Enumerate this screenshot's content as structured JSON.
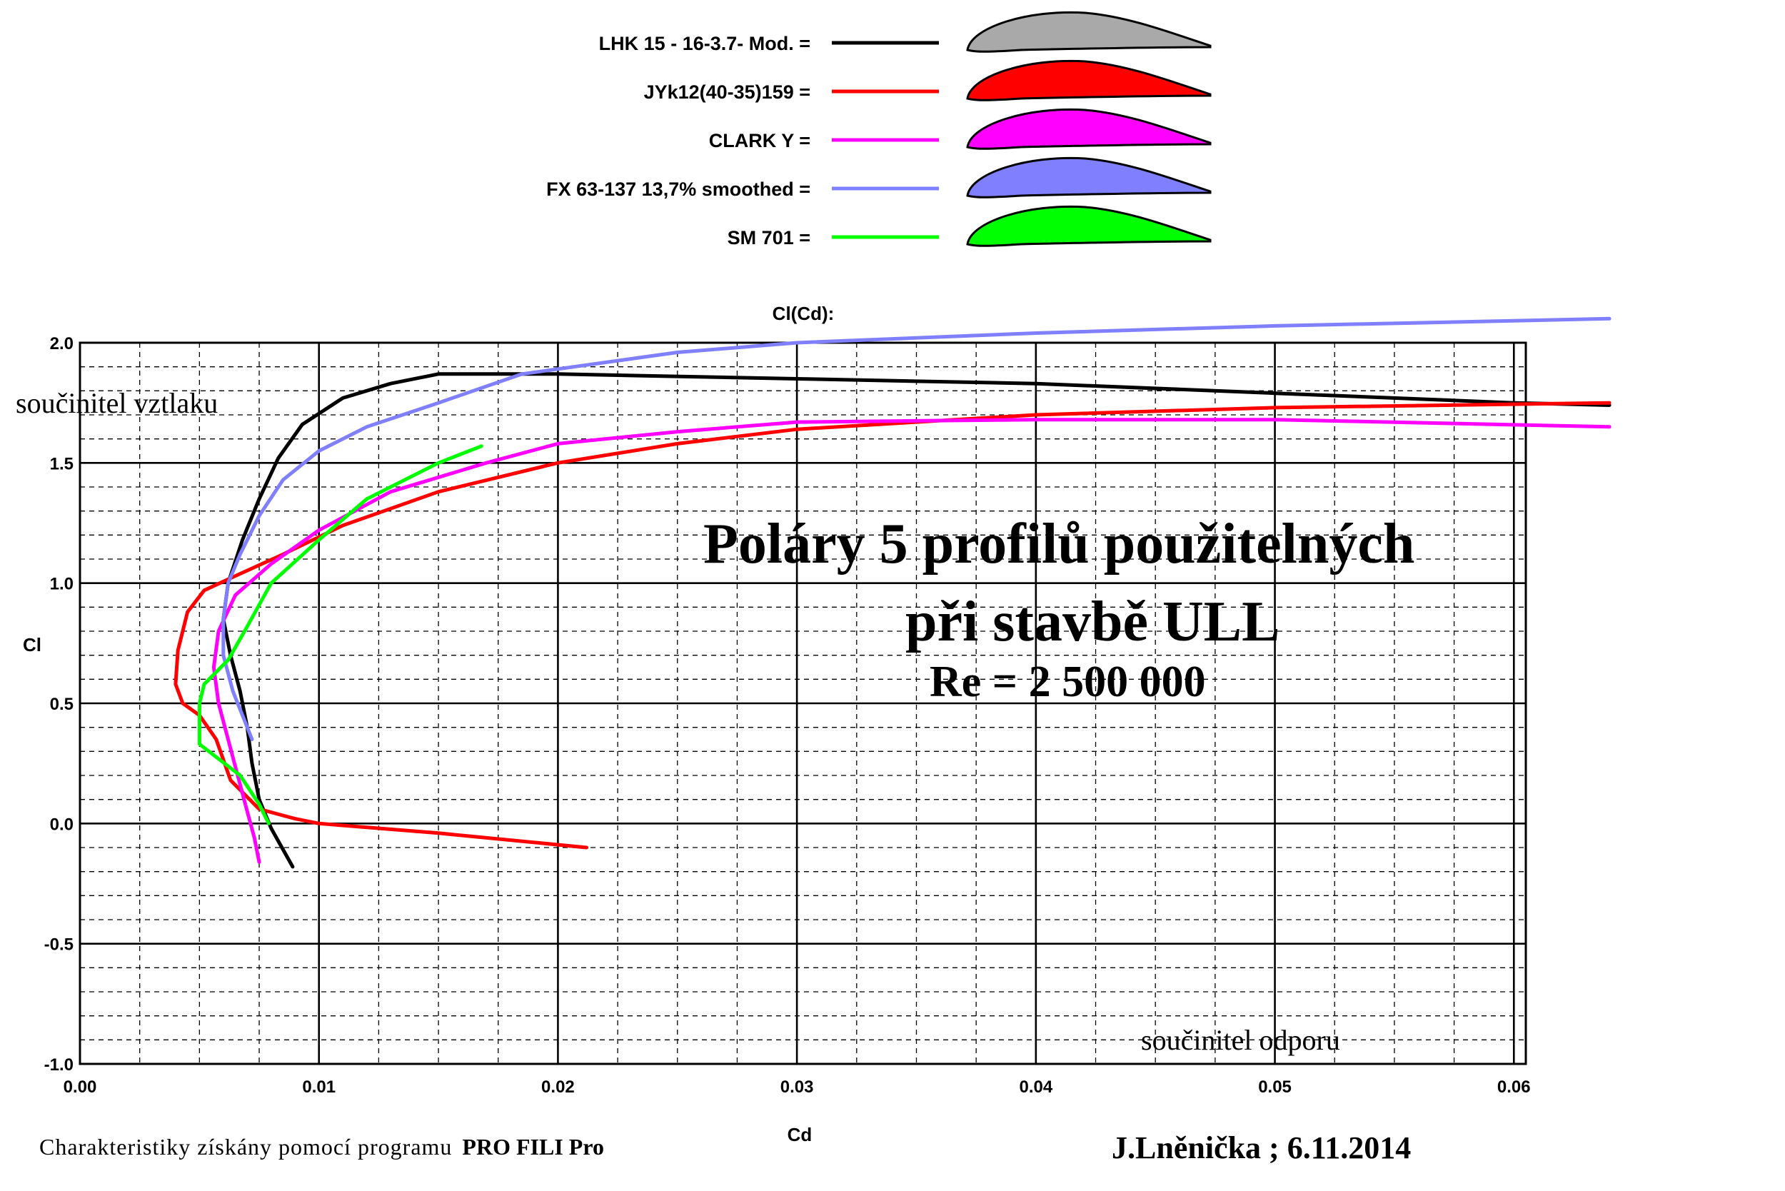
{
  "chart_data": {
    "type": "line",
    "title": "Cl(Cd):",
    "xlabel": "Cd",
    "ylabel": "Cl",
    "xlim": [
      0.0,
      0.0605
    ],
    "ylim": [
      -1.0,
      2.0
    ],
    "x_ticks": [
      "0.00",
      "0.01",
      "0.02",
      "0.03",
      "0.04",
      "0.05",
      "0.06"
    ],
    "y_ticks": [
      "2.0",
      "1.5",
      "1.0",
      "0.5",
      "0.0",
      "-0.5",
      "-1.0"
    ],
    "grid": true,
    "legend_position": "top-center",
    "series": [
      {
        "name": "LHK 15 - 16-3.7- Mod. =",
        "color": "#000000",
        "profile_fill": "#a9a9a9",
        "points": [
          [
            0.0089,
            -0.18
          ],
          [
            0.008,
            -0.02
          ],
          [
            0.0075,
            0.1
          ],
          [
            0.0072,
            0.25
          ],
          [
            0.007,
            0.4
          ],
          [
            0.0067,
            0.55
          ],
          [
            0.0063,
            0.7
          ],
          [
            0.006,
            0.85
          ],
          [
            0.0062,
            1.0
          ],
          [
            0.0068,
            1.18
          ],
          [
            0.0075,
            1.35
          ],
          [
            0.0083,
            1.52
          ],
          [
            0.0093,
            1.66
          ],
          [
            0.011,
            1.77
          ],
          [
            0.013,
            1.83
          ],
          [
            0.015,
            1.87
          ],
          [
            0.02,
            1.87
          ],
          [
            0.03,
            1.85
          ],
          [
            0.04,
            1.83
          ],
          [
            0.05,
            1.79
          ],
          [
            0.06,
            1.75
          ],
          [
            0.064,
            1.74
          ]
        ]
      },
      {
        "name": "JYk12(40-35)159 =",
        "color": "#ff0000",
        "profile_fill": "#ff0000",
        "points": [
          [
            0.0212,
            -0.1
          ],
          [
            0.015,
            -0.04
          ],
          [
            0.01,
            0.0
          ],
          [
            0.009,
            0.02
          ],
          [
            0.0075,
            0.06
          ],
          [
            0.0063,
            0.18
          ],
          [
            0.0057,
            0.35
          ],
          [
            0.005,
            0.45
          ],
          [
            0.0043,
            0.5
          ],
          [
            0.004,
            0.58
          ],
          [
            0.0041,
            0.72
          ],
          [
            0.0045,
            0.88
          ],
          [
            0.0052,
            0.97
          ],
          [
            0.0065,
            1.03
          ],
          [
            0.0085,
            1.12
          ],
          [
            0.011,
            1.24
          ],
          [
            0.015,
            1.38
          ],
          [
            0.02,
            1.5
          ],
          [
            0.025,
            1.58
          ],
          [
            0.03,
            1.64
          ],
          [
            0.04,
            1.7
          ],
          [
            0.05,
            1.73
          ],
          [
            0.064,
            1.75
          ]
        ]
      },
      {
        "name": "CLARK Y =",
        "color": "#ff00ff",
        "profile_fill": "#ff00ff",
        "points": [
          [
            0.0075,
            -0.16
          ],
          [
            0.0073,
            -0.06
          ],
          [
            0.007,
            0.05
          ],
          [
            0.0066,
            0.2
          ],
          [
            0.0062,
            0.35
          ],
          [
            0.0058,
            0.5
          ],
          [
            0.0056,
            0.65
          ],
          [
            0.0058,
            0.8
          ],
          [
            0.0065,
            0.95
          ],
          [
            0.008,
            1.08
          ],
          [
            0.01,
            1.22
          ],
          [
            0.013,
            1.38
          ],
          [
            0.017,
            1.5
          ],
          [
            0.02,
            1.58
          ],
          [
            0.025,
            1.63
          ],
          [
            0.03,
            1.67
          ],
          [
            0.04,
            1.68
          ],
          [
            0.05,
            1.68
          ],
          [
            0.064,
            1.65
          ]
        ]
      },
      {
        "name": "FX 63-137 13,7% smoothed =",
        "color": "#8080ff",
        "profile_fill": "#8080ff",
        "points": [
          [
            0.0072,
            0.35
          ],
          [
            0.0068,
            0.45
          ],
          [
            0.0064,
            0.55
          ],
          [
            0.006,
            0.7
          ],
          [
            0.006,
            0.85
          ],
          [
            0.0062,
            1.0
          ],
          [
            0.0067,
            1.12
          ],
          [
            0.0075,
            1.28
          ],
          [
            0.0085,
            1.43
          ],
          [
            0.01,
            1.55
          ],
          [
            0.012,
            1.65
          ],
          [
            0.015,
            1.75
          ],
          [
            0.0185,
            1.87
          ],
          [
            0.025,
            1.96
          ],
          [
            0.03,
            2.0
          ],
          [
            0.04,
            2.04
          ],
          [
            0.05,
            2.07
          ],
          [
            0.064,
            2.1
          ]
        ]
      },
      {
        "name": "SM 701 =",
        "color": "#00ff00",
        "profile_fill": "#00ff00",
        "points": [
          [
            0.0079,
            0.0
          ],
          [
            0.0075,
            0.08
          ],
          [
            0.0067,
            0.2
          ],
          [
            0.005,
            0.33
          ],
          [
            0.005,
            0.5
          ],
          [
            0.0052,
            0.58
          ],
          [
            0.0062,
            0.68
          ],
          [
            0.007,
            0.82
          ],
          [
            0.008,
            1.0
          ],
          [
            0.01,
            1.18
          ],
          [
            0.012,
            1.35
          ],
          [
            0.015,
            1.5
          ],
          [
            0.0168,
            1.57
          ]
        ]
      }
    ]
  },
  "annotations": {
    "lift_label": "součinitel vztlaku",
    "drag_label": "součinitel odporu",
    "main_title_line1": "Poláry  5 profilů  použitelných",
    "main_title_line2": "při  stavbě  ULL",
    "reynolds": "Re = 2 500 000",
    "footer_prefix": "Charakteristiky získány pomocí programu",
    "footer_program": "PRO FILI Pro",
    "author": "J.Lněnička ; 6.11.2014"
  }
}
